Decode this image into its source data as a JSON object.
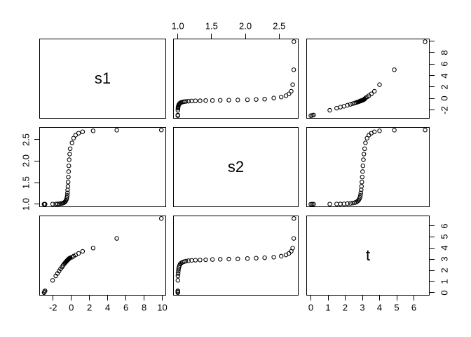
{
  "figure": {
    "kind": "R pairs scatterplot matrix",
    "background_color": "#ffffff",
    "foreground_color": "#000000",
    "marker": "open-circle"
  },
  "chart_data": {
    "type": "scatter",
    "subtype": "scatterplot-matrix",
    "title": "",
    "variables": [
      "s1",
      "s2",
      "t"
    ],
    "matrix_order": [
      "s1",
      "s2",
      "t"
    ],
    "grid": false,
    "n_points": 35,
    "series": {
      "t": [
        0.0,
        0.08,
        0.16,
        1.1,
        1.5,
        1.72,
        1.93,
        2.13,
        2.3,
        2.44,
        2.56,
        2.65,
        2.72,
        2.78,
        2.82,
        2.86,
        2.89,
        2.91,
        2.93,
        2.95,
        2.97,
        2.99,
        3.01,
        3.03,
        3.06,
        3.09,
        3.13,
        3.18,
        3.27,
        3.38,
        3.52,
        3.7,
        4.0,
        4.86,
        6.65
      ],
      "s1": [
        -3.0,
        -2.94,
        -2.88,
        -2.05,
        -1.7,
        -1.52,
        -1.35,
        -1.18,
        -1.02,
        -0.9,
        -0.79,
        -0.7,
        -0.63,
        -0.57,
        -0.52,
        -0.48,
        -0.44,
        -0.42,
        -0.4,
        -0.37,
        -0.35,
        -0.32,
        -0.29,
        -0.27,
        -0.23,
        -0.18,
        -0.12,
        0.08,
        0.25,
        0.48,
        0.8,
        1.25,
        2.4,
        5.0,
        9.9
      ],
      "s2": [
        1.0,
        1.0,
        1.0,
        1.001,
        1.003,
        1.005,
        1.008,
        1.012,
        1.018,
        1.026,
        1.036,
        1.05,
        1.068,
        1.092,
        1.12,
        1.158,
        1.205,
        1.262,
        1.33,
        1.413,
        1.513,
        1.628,
        1.755,
        1.888,
        2.03,
        2.16,
        2.285,
        2.42,
        2.53,
        2.6,
        2.645,
        2.678,
        2.7,
        2.715,
        2.718
      ]
    },
    "axes": {
      "s1": {
        "lim": [
          -3.52,
          10.42
        ],
        "data_range": [
          -3.0,
          9.9
        ]
      },
      "s2": {
        "lim": [
          0.931,
          2.787
        ],
        "data_range": [
          1.0,
          2.718
        ]
      },
      "t": {
        "lim": [
          -0.266,
          6.916
        ],
        "data_range": [
          0.0,
          6.65
        ]
      }
    },
    "axes_drawn": [
      {
        "var": "s2",
        "side": "top",
        "col": 1,
        "values": [
          1.0,
          1.5,
          2.0,
          2.5
        ],
        "labels": [
          "1.0",
          "1.5",
          "2.0",
          "2.5"
        ]
      },
      {
        "var": "s1",
        "side": "right",
        "row": 0,
        "values": [
          -2,
          0,
          2,
          4,
          6,
          8,
          10
        ],
        "labels": [
          "-2",
          "0",
          "2",
          "4",
          "6",
          "8",
          ""
        ]
      },
      {
        "var": "s2",
        "side": "left",
        "row": 1,
        "values": [
          1.0,
          1.5,
          2.0,
          2.5
        ],
        "labels": [
          "1.0",
          "1.5",
          "2.0",
          "2.5"
        ]
      },
      {
        "var": "s1",
        "side": "bottom",
        "col": 0,
        "values": [
          -2,
          0,
          2,
          4,
          6,
          8,
          10
        ],
        "labels": [
          "-2",
          "0",
          "2",
          "4",
          "6",
          "8",
          "10"
        ]
      },
      {
        "var": "t",
        "side": "bottom",
        "col": 2,
        "values": [
          0,
          1,
          2,
          3,
          4,
          5,
          6
        ],
        "labels": [
          "0",
          "1",
          "2",
          "3",
          "4",
          "5",
          "6"
        ]
      },
      {
        "var": "t",
        "side": "right",
        "row": 2,
        "values": [
          0,
          1,
          2,
          3,
          4,
          5,
          6
        ],
        "labels": [
          "0",
          "1",
          "2",
          "3",
          "4",
          "5",
          "6"
        ]
      }
    ]
  }
}
